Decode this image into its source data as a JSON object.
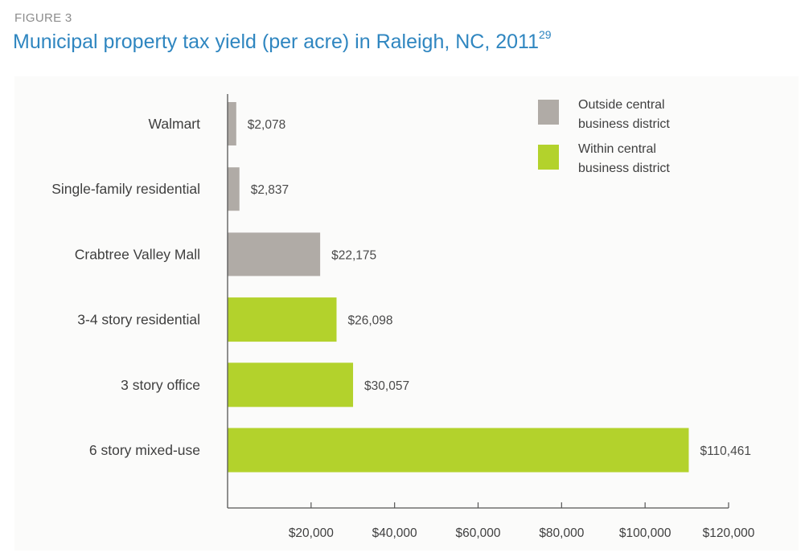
{
  "figure_label": "FIGURE 3",
  "title": "Municipal property tax yield (per acre) in Raleigh, NC, 2011",
  "title_sup": "29",
  "colors": {
    "outside": "#b0aba6",
    "within": "#b3d22c",
    "axis": "#555555",
    "title": "#2f86c0"
  },
  "chart_data": {
    "type": "bar",
    "orientation": "horizontal",
    "categories": [
      "Walmart",
      "Single-family residential",
      "Crabtree Valley Mall",
      "3-4 story residential",
      "3 story office",
      "6 story mixed-use"
    ],
    "values": [
      2078,
      2837,
      22175,
      26098,
      30057,
      110461
    ],
    "value_labels": [
      "$2,078",
      "$2,837",
      "$22,175",
      "$26,098",
      "$30,057",
      "$110,461"
    ],
    "groups": [
      "outside",
      "outside",
      "outside",
      "within",
      "within",
      "within"
    ],
    "xlim": [
      0,
      120000
    ],
    "xticks": [
      20000,
      40000,
      60000,
      80000,
      100000,
      120000
    ],
    "xtick_labels": [
      "$20,000",
      "$40,000",
      "$60,000",
      "$80,000",
      "$100,000",
      "$120,000"
    ],
    "grid": false,
    "legend": {
      "position": "top-right",
      "items": [
        {
          "key": "outside",
          "lines": [
            "Outside central",
            "business district"
          ]
        },
        {
          "key": "within",
          "lines": [
            "Within central",
            "business district"
          ]
        }
      ]
    }
  }
}
